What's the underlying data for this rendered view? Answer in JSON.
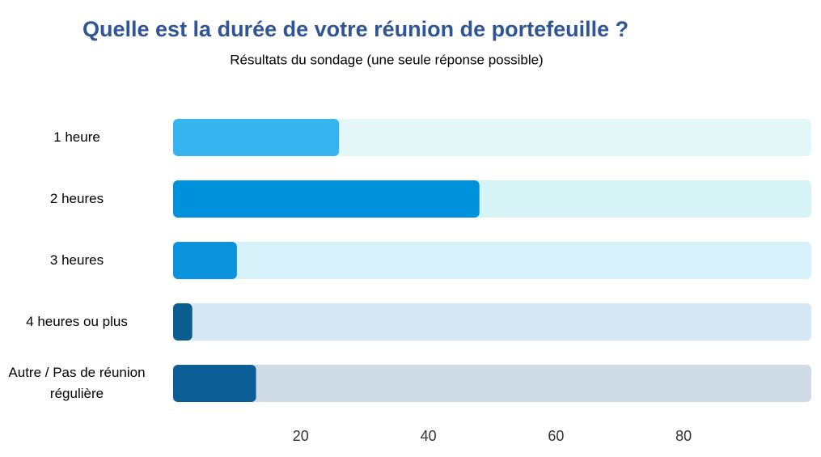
{
  "chart_data": {
    "type": "bar",
    "orientation": "horizontal",
    "title": "Quelle est la durée de votre réunion de portefeuille ?",
    "subtitle": "Résultats du sondage (une seule réponse possible)",
    "categories": [
      "1 heure",
      "2 heures",
      "3 heures",
      "4 heures ou plus",
      "Autre / Pas de réunion régulière"
    ],
    "values": [
      26,
      48,
      10,
      3,
      13
    ],
    "colors": [
      "#35b4f0",
      "#0091dc",
      "#0a93dc",
      "#0a5d8c",
      "#0b5f96"
    ],
    "track_colors": [
      "#e3f6f8",
      "#d5f3f5",
      "#d6f1fa",
      "#d6e8f5",
      "#cfdce8"
    ],
    "xlim": [
      0,
      100
    ],
    "xticks": [
      20,
      40,
      60,
      80
    ],
    "grid": false
  }
}
